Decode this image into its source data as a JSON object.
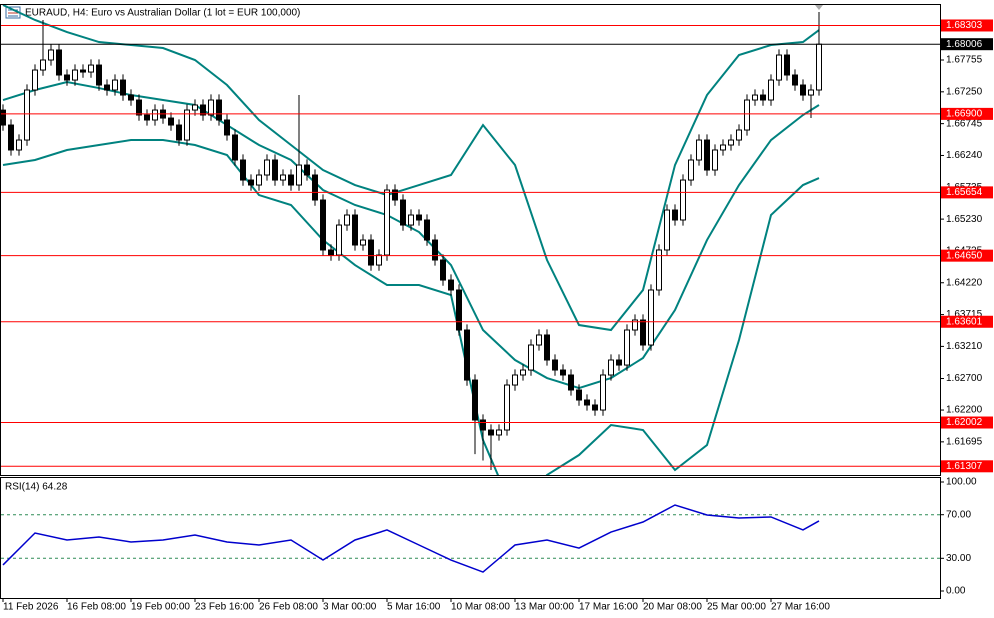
{
  "chart_data": [
    {
      "type": "candlestick",
      "title": "EURAUD, H4:  Euro vs Australian Dollar (1 lot = EUR 100,000)",
      "categories": [
        "11 Feb 2026",
        null,
        null,
        null,
        null,
        null,
        null,
        null,
        "16 Feb 08:00",
        null,
        null,
        null,
        null,
        null,
        null,
        null,
        "19 Feb 00:00",
        null,
        null,
        null,
        null,
        null,
        null,
        null,
        "23 Feb 16:00",
        null,
        null,
        null,
        null,
        null,
        null,
        null,
        "26 Feb 08:00",
        null,
        null,
        null,
        null,
        null,
        null,
        null,
        "3 Mar 00:00",
        null,
        null,
        null,
        null,
        null,
        null,
        null,
        "5 Mar 16:00",
        null,
        null,
        null,
        null,
        null,
        null,
        null,
        "10 Mar 08:00",
        null,
        null,
        null,
        null,
        null,
        null,
        null,
        "13 Mar 00:00",
        null,
        null,
        null,
        null,
        null,
        null,
        null,
        "17 Mar 16:00",
        null,
        null,
        null,
        null,
        null,
        null,
        null,
        "20 Mar 08:00",
        null,
        null,
        null,
        null,
        null,
        null,
        null,
        "25 Mar 00:00",
        null,
        null,
        null,
        null,
        null,
        null,
        null,
        "27 Mar 16:00",
        null,
        null,
        null,
        null,
        null,
        null
      ],
      "open": [
        1.6696,
        1.66723,
        1.66327,
        1.66485,
        1.67279,
        1.67596,
        1.67755,
        1.67914,
        1.67517,
        1.67437,
        1.67596,
        1.67564,
        1.67675,
        1.67358,
        1.67279,
        1.67437,
        1.67199,
        1.6712,
        1.66882,
        1.66803,
        1.66961,
        1.66834,
        1.66723,
        1.66485,
        1.66961,
        1.67041,
        1.66882,
        1.6712,
        1.66803,
        1.66565,
        1.66168,
        1.6585,
        1.65771,
        1.6593,
        1.66168,
        1.6585,
        1.6593,
        1.65771,
        1.66088,
        1.6593,
        1.65533,
        1.6474,
        1.6466,
        1.65136,
        1.65295,
        1.64819,
        1.64898,
        1.64501,
        1.6466,
        1.65692,
        1.65533,
        1.65136,
        1.65295,
        1.65216,
        1.64898,
        1.64581,
        1.64263,
        1.64105,
        1.6347,
        1.62676,
        1.62042,
        1.61883,
        1.61804,
        1.61883,
        1.62597,
        1.62756,
        1.62835,
        1.63232,
        1.63391,
        1.62994,
        1.62835,
        1.62756,
        1.62518,
        1.62359,
        1.6228,
        1.622,
        1.62756,
        1.62994,
        1.62914,
        1.6347,
        1.63629,
        1.63232,
        1.64105,
        1.6474,
        1.65374,
        1.65216,
        1.6585,
        1.66168,
        1.66485,
        1.66009,
        1.66327,
        1.66406,
        1.66485,
        1.66644,
        1.6712,
        1.67199,
        1.6712,
        1.67437,
        1.67834,
        1.67517,
        1.67358,
        1.67199,
        1.67279
      ],
      "high": [
        1.6705,
        1.66813,
        1.66575,
        1.67369,
        1.67686,
        1.6839,
        1.68004,
        1.68004,
        1.67607,
        1.67686,
        1.67686,
        1.67765,
        1.67765,
        1.67448,
        1.67527,
        1.67527,
        1.67289,
        1.6721,
        1.66972,
        1.67051,
        1.67051,
        1.66924,
        1.66813,
        1.67051,
        1.67131,
        1.67131,
        1.6721,
        1.6721,
        1.66893,
        1.66655,
        1.66258,
        1.6594,
        1.6602,
        1.66258,
        1.66258,
        1.6602,
        1.6602,
        1.67199,
        1.66178,
        1.6602,
        1.65623,
        1.6483,
        1.65226,
        1.65385,
        1.65385,
        1.64988,
        1.64988,
        1.6475,
        1.65782,
        1.65782,
        1.65623,
        1.65385,
        1.65385,
        1.65306,
        1.64988,
        1.64671,
        1.64353,
        1.64195,
        1.6356,
        1.62766,
        1.62132,
        1.61973,
        1.61973,
        1.62687,
        1.62846,
        1.62925,
        1.63322,
        1.63481,
        1.63481,
        1.63084,
        1.62925,
        1.62846,
        1.62608,
        1.62449,
        1.6237,
        1.62846,
        1.63084,
        1.63084,
        1.6356,
        1.63719,
        1.63719,
        1.64195,
        1.6483,
        1.65464,
        1.65464,
        1.6594,
        1.66258,
        1.66575,
        1.66575,
        1.66417,
        1.66496,
        1.66575,
        1.66734,
        1.6721,
        1.67289,
        1.67289,
        1.67527,
        1.67924,
        1.67924,
        1.67607,
        1.67448,
        1.67369,
        1.68517
      ],
      "low": [
        1.66633,
        1.66237,
        1.66237,
        1.66395,
        1.67189,
        1.67506,
        1.67665,
        1.67427,
        1.67347,
        1.67347,
        1.67474,
        1.67474,
        1.67268,
        1.67189,
        1.67189,
        1.67109,
        1.6703,
        1.66792,
        1.66713,
        1.66713,
        1.66744,
        1.66633,
        1.66395,
        1.66395,
        1.66871,
        1.66792,
        1.66792,
        1.66713,
        1.66475,
        1.66078,
        1.6576,
        1.65681,
        1.65681,
        1.6584,
        1.6576,
        1.6576,
        1.65681,
        1.65681,
        1.6584,
        1.65443,
        1.6465,
        1.6457,
        1.6457,
        1.65046,
        1.64729,
        1.64729,
        1.64411,
        1.64411,
        1.6457,
        1.65443,
        1.65046,
        1.65046,
        1.65126,
        1.64808,
        1.64491,
        1.64173,
        1.64015,
        1.6338,
        1.62586,
        1.615,
        1.614,
        1.61248,
        1.61714,
        1.61793,
        1.62507,
        1.62666,
        1.62745,
        1.63142,
        1.62904,
        1.62745,
        1.62666,
        1.62428,
        1.62269,
        1.6219,
        1.6211,
        1.6211,
        1.62666,
        1.62824,
        1.62824,
        1.6338,
        1.63142,
        1.63142,
        1.64015,
        1.6465,
        1.65126,
        1.65126,
        1.6576,
        1.66078,
        1.65919,
        1.65919,
        1.66237,
        1.66316,
        1.66395,
        1.66554,
        1.6703,
        1.6703,
        1.6703,
        1.67347,
        1.67427,
        1.67268,
        1.67109,
        1.66834,
        1.67189
      ],
      "close": [
        1.66723,
        1.66327,
        1.66485,
        1.67279,
        1.67596,
        1.67755,
        1.67914,
        1.67517,
        1.67437,
        1.67596,
        1.67564,
        1.67675,
        1.67358,
        1.67279,
        1.67437,
        1.67199,
        1.6712,
        1.66882,
        1.66803,
        1.66961,
        1.66834,
        1.66723,
        1.66485,
        1.66961,
        1.67041,
        1.66882,
        1.6712,
        1.66803,
        1.66565,
        1.66168,
        1.6585,
        1.65771,
        1.6593,
        1.66168,
        1.6585,
        1.6593,
        1.65771,
        1.66088,
        1.6593,
        1.65533,
        1.6474,
        1.6466,
        1.65136,
        1.65295,
        1.64819,
        1.64898,
        1.64501,
        1.6466,
        1.65692,
        1.65533,
        1.65136,
        1.65295,
        1.65216,
        1.64898,
        1.64581,
        1.64263,
        1.64105,
        1.6347,
        1.62676,
        1.62042,
        1.61883,
        1.61804,
        1.61883,
        1.62597,
        1.62756,
        1.62835,
        1.63232,
        1.63391,
        1.62994,
        1.62835,
        1.62756,
        1.62518,
        1.62359,
        1.6228,
        1.622,
        1.62756,
        1.62994,
        1.62914,
        1.6347,
        1.63629,
        1.63232,
        1.64105,
        1.6474,
        1.65374,
        1.65216,
        1.6585,
        1.66168,
        1.66485,
        1.66009,
        1.66327,
        1.66406,
        1.66485,
        1.66644,
        1.6712,
        1.67199,
        1.6712,
        1.67437,
        1.67834,
        1.67517,
        1.67358,
        1.67199,
        1.67279,
        1.68006
      ],
      "up_color": "#ffffff",
      "down_color": "#000000",
      "overlays": {
        "color": "#00827f",
        "x": [
          0,
          4,
          8,
          12,
          16,
          20,
          24,
          28,
          32,
          36,
          40,
          44,
          48,
          52,
          56,
          60,
          64,
          68,
          72,
          76,
          80,
          84,
          88,
          92,
          96,
          100,
          102
        ],
        "series": [
          {
            "values": [
              1.68628,
              1.6839,
              1.68199,
              1.6804,
              1.67993,
              1.67945,
              1.67755,
              1.67358,
              1.66803,
              1.66406,
              1.66009,
              1.65771,
              1.65612,
              1.65771,
              1.6593,
              1.66723,
              1.66088,
              1.64581,
              1.63549,
              1.6347,
              1.64105,
              1.66088,
              1.67199,
              1.67834,
              1.67993,
              1.6804,
              1.68231
            ]
          },
          {
            "values": [
              1.6712,
              1.67279,
              1.67406,
              1.6731,
              1.67199,
              1.6712,
              1.67041,
              1.66723,
              1.66406,
              1.66168,
              1.65692,
              1.65454,
              1.65295,
              1.65025,
              1.64501,
              1.6347,
              1.62994,
              1.62708,
              1.62549,
              1.62708,
              1.63026,
              1.63787,
              1.64898,
              1.65771,
              1.66485,
              1.66882,
              1.67041
            ]
          },
          {
            "values": [
              1.66088,
              1.66168,
              1.66327,
              1.66406,
              1.66485,
              1.66485,
              1.66406,
              1.66247,
              1.65612,
              1.65454,
              1.64898,
              1.64501,
              1.64184,
              1.64184,
              1.64025,
              1.61724,
              1.60534,
              1.61169,
              1.61486,
              1.61962,
              1.61883,
              1.61248,
              1.61645,
              1.63311,
              1.65295,
              1.65771,
              1.65882
            ]
          }
        ]
      },
      "levels": [
        {
          "value": 1.68303,
          "color": "#ff0000"
        },
        {
          "value": 1.68006,
          "color": "#000000"
        },
        {
          "value": 1.669,
          "label": "1.66900",
          "color": "#ff0000"
        },
        {
          "value": 1.65654,
          "color": "#ff0000"
        },
        {
          "value": 1.6465,
          "label": "1.64650",
          "color": "#ff0000"
        },
        {
          "value": 1.63601,
          "color": "#ff0000"
        },
        {
          "value": 1.62002,
          "color": "#ff0000"
        },
        {
          "value": 1.61307,
          "color": "#ff0000"
        }
      ],
      "ylim": [
        1.61169,
        1.68628
      ],
      "yticks": [
        1.67755,
        {
          "value": 1.6725,
          "label": "1.67250"
        },
        1.66745,
        {
          "value": 1.6624,
          "label": "1.66240"
        },
        1.65735,
        {
          "value": 1.6523,
          "label": "1.65230"
        },
        1.64725,
        {
          "value": 1.6422,
          "label": "1.64220"
        },
        1.63715,
        {
          "value": 1.6321,
          "label": "1.63210"
        },
        {
          "value": 1.627,
          "label": "1.62700"
        },
        {
          "value": 1.622,
          "label": "1.62200"
        },
        1.61695
      ]
    },
    {
      "type": "line",
      "title": "RSI(14) 64.28",
      "color": "#0000cd",
      "x": [
        0,
        4,
        8,
        12,
        16,
        20,
        24,
        28,
        32,
        36,
        40,
        44,
        48,
        52,
        56,
        60,
        64,
        68,
        72,
        76,
        80,
        84,
        88,
        92,
        96,
        100,
        102
      ],
      "values": [
        23.9,
        53.2,
        46.8,
        49.5,
        45.0,
        46.8,
        51.4,
        45.0,
        42.2,
        46.8,
        28.4,
        46.8,
        56.0,
        42.2,
        28.4,
        17.4,
        42.2,
        46.8,
        39.4,
        54.1,
        63.3,
        78.9,
        69.7,
        67.0,
        67.9,
        56.0,
        64.28
      ],
      "levels": [
        70,
        30
      ],
      "level_color": "#2e8b57",
      "ylim": [
        -6.42,
        103.67
      ],
      "yticks": [
        {
          "value": 100,
          "label": "100.00"
        },
        {
          "value": 70,
          "label": "70.00"
        },
        {
          "value": 30,
          "label": "30.00"
        },
        {
          "value": 0,
          "label": "0.00"
        }
      ]
    }
  ]
}
